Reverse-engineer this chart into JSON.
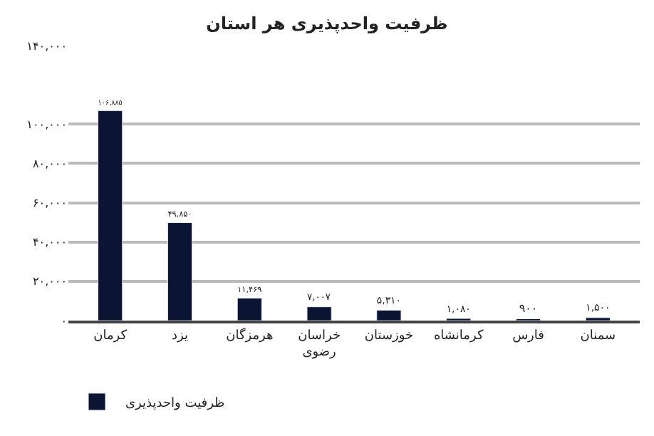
{
  "chart_data": {
    "type": "bar",
    "title": "ظرفیت واحدپذیری هر استان",
    "categories": [
      "کرمان",
      "یزد",
      "هرمزگان",
      "خراسان رضوی",
      "خوزستان",
      "کرمانشاه",
      "فارس",
      "سمنان"
    ],
    "series": [
      {
        "name": "ظرفیت واحدپذیری",
        "color": "#0b1533",
        "values": [
          106885,
          49850,
          11469,
          7007,
          5310,
          1080,
          900,
          1500
        ],
        "value_labels": [
          "۱۰۶,۸۸۵",
          "۴۹,۸۵۰",
          "۱۱,۴۶۹",
          "۷,۰۰۷",
          "۵,۳۱۰",
          "۱,۰۸۰",
          "۹۰۰",
          "۱,۵۰۰"
        ]
      }
    ],
    "ylim": [
      0,
      140000
    ],
    "yticks": [
      {
        "value": 0,
        "label": "۰"
      },
      {
        "value": 20000,
        "label": "۲۰,۰۰۰"
      },
      {
        "value": 40000,
        "label": "۴۰,۰۰۰"
      },
      {
        "value": 60000,
        "label": "۶۰,۰۰۰"
      },
      {
        "value": 80000,
        "label": "۸۰,۰۰۰"
      },
      {
        "value": 100000,
        "label": "۱۰۰,۰۰۰"
      },
      {
        "value": 140000,
        "label": "۱۴۰,۰۰۰"
      }
    ],
    "grid": "y",
    "legend": "bottom left"
  }
}
